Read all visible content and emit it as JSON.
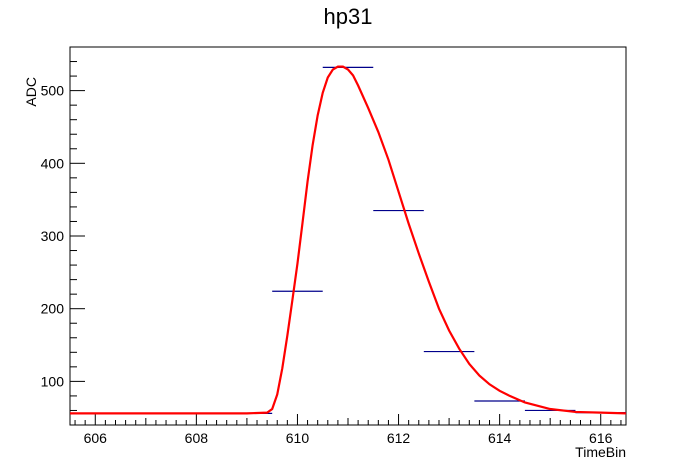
{
  "chart_data": {
    "type": "line",
    "title": "hp31",
    "xlabel": "TimeBin",
    "ylabel": "ADC",
    "xlim": [
      605.5,
      616.5
    ],
    "ylim": [
      40,
      560
    ],
    "grid": false,
    "xticks": [
      606,
      608,
      610,
      612,
      614,
      616
    ],
    "yticks": [
      100,
      200,
      300,
      400,
      500
    ],
    "colors": {
      "histogram": "#00008b",
      "fit": "#ff0000",
      "axis": "#000000",
      "background": "#ffffff"
    },
    "series": [
      {
        "kind": "histogram",
        "x": [
          606,
          607,
          608,
          609,
          610,
          611,
          612,
          613,
          614,
          615,
          616
        ],
        "y": [
          56,
          56,
          56,
          56,
          224,
          532,
          335,
          141,
          73,
          60,
          57
        ],
        "bin_width": 1
      },
      {
        "kind": "fit-curve",
        "x": [
          605.5,
          606,
          607,
          608,
          609,
          609.4,
          609.5,
          609.6,
          609.7,
          609.8,
          609.9,
          610.0,
          610.1,
          610.2,
          610.3,
          610.4,
          610.5,
          610.6,
          610.7,
          610.8,
          610.9,
          611.0,
          611.1,
          611.2,
          611.4,
          611.6,
          611.8,
          612.0,
          612.2,
          612.4,
          612.6,
          612.8,
          613.0,
          613.2,
          613.4,
          613.6,
          613.8,
          614.0,
          614.2,
          614.5,
          615.0,
          615.5,
          616.0,
          616.5
        ],
        "y": [
          56,
          56,
          56,
          56,
          56,
          57,
          62,
          82,
          118,
          163,
          212,
          262,
          318,
          375,
          425,
          466,
          497,
          518,
          529,
          533,
          533,
          529,
          521,
          507,
          476,
          443,
          405,
          361,
          317,
          276,
          237,
          200,
          170,
          145,
          124,
          108,
          96,
          87,
          80,
          71,
          62,
          58,
          57,
          56
        ]
      }
    ]
  }
}
